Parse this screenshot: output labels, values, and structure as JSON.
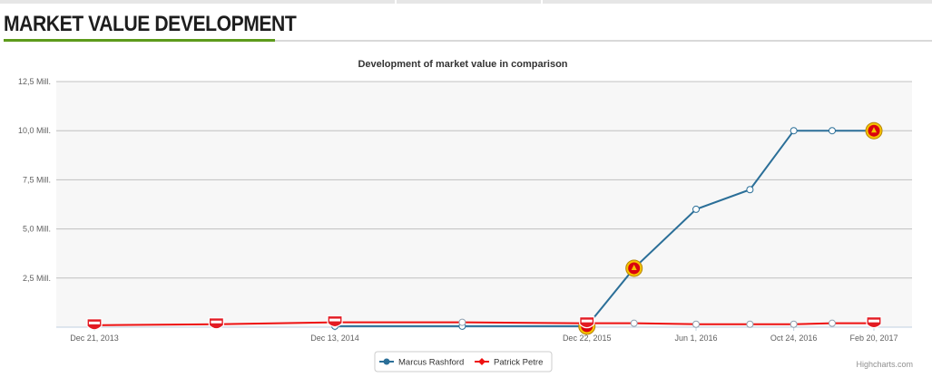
{
  "header": {
    "title": "MARKET VALUE DEVELOPMENT"
  },
  "credits": "Highcharts.com",
  "chart_data": {
    "type": "line",
    "title": "Development of market value in comparison",
    "ylim": [
      0,
      12.5
    ],
    "y_ticks": [
      "12,5 Mill.",
      "10,0 Mill.",
      "7,5 Mill.",
      "5,0 Mill.",
      "2,5 Mill."
    ],
    "x_tick_labels": [
      "Dec 21, 2013",
      "Dec 13, 2014",
      "Dec 22, 2015",
      "Jun 1, 2016",
      "Oct 24, 2016",
      "Feb 20, 2017"
    ],
    "legend_position": "bottom",
    "series": [
      {
        "name": "Marcus Rashford",
        "color": "#2f7ed8",
        "points": [
          {
            "x": "Dec 13, 2014",
            "y": 0.05,
            "icon": ""
          },
          {
            "x": "Jun 20, 2015",
            "y": 0.05,
            "icon": ""
          },
          {
            "x": "Dec 22, 2015",
            "y": 0.05,
            "icon": "club-crest-icon"
          },
          {
            "x": "Mar 1, 2016",
            "y": 3.0,
            "icon": "club-crest-icon"
          },
          {
            "x": "Jun 1, 2016",
            "y": 6.0,
            "icon": ""
          },
          {
            "x": "Aug 20, 2016",
            "y": 7.0,
            "icon": ""
          },
          {
            "x": "Oct 24, 2016",
            "y": 10.0,
            "icon": ""
          },
          {
            "x": "Dec 20, 2016",
            "y": 10.0,
            "icon": ""
          },
          {
            "x": "Feb 20, 2017",
            "y": 10.0,
            "icon": "club-crest-icon"
          }
        ]
      },
      {
        "name": "Patrick Petre",
        "color": "#ee1111",
        "points": [
          {
            "x": "Dec 21, 2013",
            "y": 0.1,
            "icon": "club-crest-icon"
          },
          {
            "x": "Jun 20, 2014",
            "y": 0.15,
            "icon": "club-crest-icon"
          },
          {
            "x": "Dec 13, 2014",
            "y": 0.25,
            "icon": "club-crest-icon"
          },
          {
            "x": "Jun 20, 2015",
            "y": 0.25,
            "icon": ""
          },
          {
            "x": "Dec 22, 2015",
            "y": 0.2,
            "icon": "club-crest-icon"
          },
          {
            "x": "Mar 1, 2016",
            "y": 0.2,
            "icon": ""
          },
          {
            "x": "Jun 1, 2016",
            "y": 0.15,
            "icon": ""
          },
          {
            "x": "Aug 20, 2016",
            "y": 0.15,
            "icon": ""
          },
          {
            "x": "Oct 24, 2016",
            "y": 0.15,
            "icon": ""
          },
          {
            "x": "Dec 20, 2016",
            "y": 0.2,
            "icon": ""
          },
          {
            "x": "Feb 20, 2017",
            "y": 0.2,
            "icon": "club-crest-icon"
          }
        ]
      }
    ]
  }
}
